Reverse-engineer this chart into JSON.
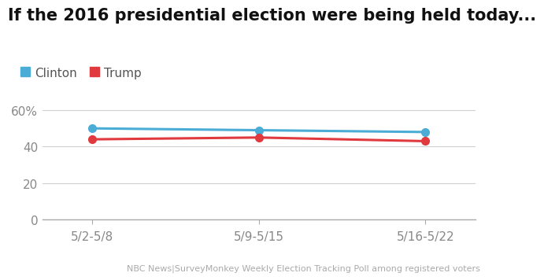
{
  "title": "If the 2016 presidential election were being held today...",
  "categories": [
    "5/2-5/8",
    "5/9-5/15",
    "5/16-5/22"
  ],
  "clinton_values": [
    50,
    49,
    48
  ],
  "trump_values": [
    44,
    45,
    43
  ],
  "clinton_color": "#4bacd6",
  "trump_color": "#e0393e",
  "ylim": [
    0,
    65
  ],
  "yticks": [
    0,
    20,
    40,
    60
  ],
  "ytick_labels": [
    "0",
    "20",
    "40",
    "60%"
  ],
  "footnote": "NBC News|SurveyMonkey Weekly Election Tracking Poll among registered voters",
  "background_color": "#ffffff",
  "grid_color": "#d0d0d0",
  "axis_color": "#aaaaaa",
  "title_fontsize": 15,
  "legend_fontsize": 11,
  "tick_fontsize": 11,
  "footnote_fontsize": 8,
  "line_width": 2.2,
  "marker_size": 7
}
